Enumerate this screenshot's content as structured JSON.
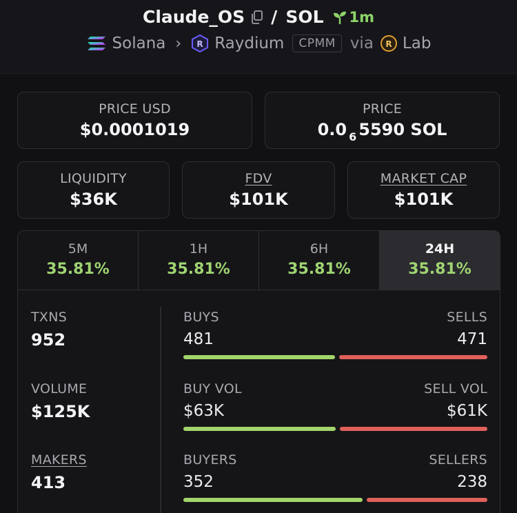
{
  "header": {
    "token": "Claude_OS",
    "separator": "/",
    "quote": "SOL",
    "age": "1m",
    "chain": "Solana",
    "dex": "Raydium",
    "pool_type": "CPMM",
    "via_label": "via",
    "launchpad": "Lab",
    "icons": {
      "chain": "solana-logo-icon",
      "dex": "raydium-logo-icon",
      "launchpad": "lab-logo-icon",
      "copy": "copy-icon",
      "age": "sprout-icon",
      "chevron": "chevron-right-icon"
    }
  },
  "price_cards": {
    "price_usd": {
      "label": "PRICE USD",
      "value": "$0.0001019"
    },
    "price_native": {
      "label": "PRICE",
      "value_prefix": "0.0",
      "zeros": "6",
      "value_suffix": "5590 SOL"
    }
  },
  "metrics": {
    "liquidity": {
      "label": "LIQUIDITY",
      "value": "$36K"
    },
    "fdv": {
      "label": "FDV",
      "value": "$101K"
    },
    "market_cap": {
      "label": "MARKET CAP",
      "value": "$101K"
    }
  },
  "timeframes": [
    {
      "label": "5M",
      "change": "35.81%",
      "active": false
    },
    {
      "label": "1H",
      "change": "35.81%",
      "active": false
    },
    {
      "label": "6H",
      "change": "35.81%",
      "active": false
    },
    {
      "label": "24H",
      "change": "35.81%",
      "active": true
    }
  ],
  "stats": {
    "txns": {
      "label": "TXNS",
      "value": "952"
    },
    "volume": {
      "label": "VOLUME",
      "value": "$125K"
    },
    "makers": {
      "label": "MAKERS",
      "value": "413"
    },
    "buys_sells": {
      "left_label": "BUYS",
      "right_label": "SELLS",
      "left_value": "481",
      "right_value": "471",
      "buy_fraction": 0.505
    },
    "vol": {
      "left_label": "BUY VOL",
      "right_label": "SELL VOL",
      "left_value": "$63K",
      "right_value": "$61K",
      "buy_fraction": 0.508
    },
    "buyers_sellers": {
      "left_label": "BUYERS",
      "right_label": "SELLERS",
      "left_value": "352",
      "right_value": "238",
      "buy_fraction": 0.597
    }
  },
  "colors": {
    "positive": "#9fd472",
    "buy_bar": "#a3d56c",
    "sell_bar": "#e0605a",
    "background": "#111114"
  }
}
